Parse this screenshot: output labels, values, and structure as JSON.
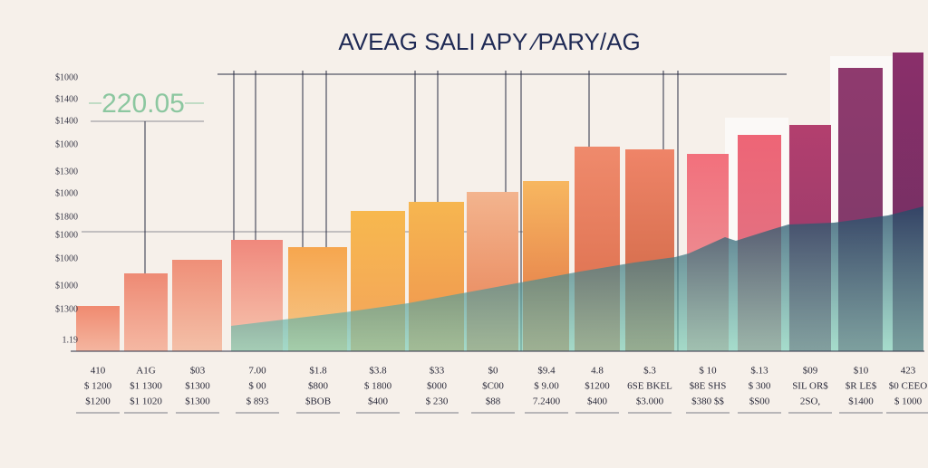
{
  "title": "AVEAG SALI APY ⁄PARY/AG",
  "highlight": "220.05",
  "y_labels": [
    "$1000",
    "$1400",
    "$1400",
    "$1000",
    "$1300",
    "$1000",
    "$1800",
    "$1000",
    "$1000",
    "$1000",
    "$1300",
    "1.19"
  ],
  "columns": [
    {
      "lines": [
        "410",
        "$ 1200",
        "$1200"
      ]
    },
    {
      "lines": [
        "A1G",
        "$1 1300",
        "$1 1020"
      ]
    },
    {
      "lines": [
        "$03",
        "$1300",
        "$1300"
      ]
    },
    {
      "lines": [
        "7.00",
        "$ 00",
        "$ 893"
      ]
    },
    {
      "lines": [
        "$1.8",
        "$800",
        "$BOB"
      ]
    },
    {
      "lines": [
        "$3.8",
        "$ 1800",
        "$400"
      ]
    },
    {
      "lines": [
        "$33",
        "$000",
        "$ 230"
      ]
    },
    {
      "lines": [
        "$0",
        "$C00",
        "$88"
      ]
    },
    {
      "lines": [
        "$9.4",
        "$ 9.00",
        "7.2400"
      ]
    },
    {
      "lines": [
        "4.8",
        "$1200",
        "$400"
      ]
    },
    {
      "lines": [
        "$.3",
        "6SE BKEL",
        "$3.000"
      ]
    },
    {
      "lines": [
        "$ 10",
        "$8E SHS",
        "$380 $$"
      ]
    },
    {
      "lines": [
        "$.13",
        "$ 300",
        "$S00"
      ]
    },
    {
      "lines": [
        "$09",
        "SIL OR$",
        "2SO,"
      ]
    },
    {
      "lines": [
        "$10",
        "$R LE$",
        "$1400"
      ]
    },
    {
      "lines": [
        "423",
        "$0 CEEO",
        "$ 1000"
      ]
    }
  ]
}
